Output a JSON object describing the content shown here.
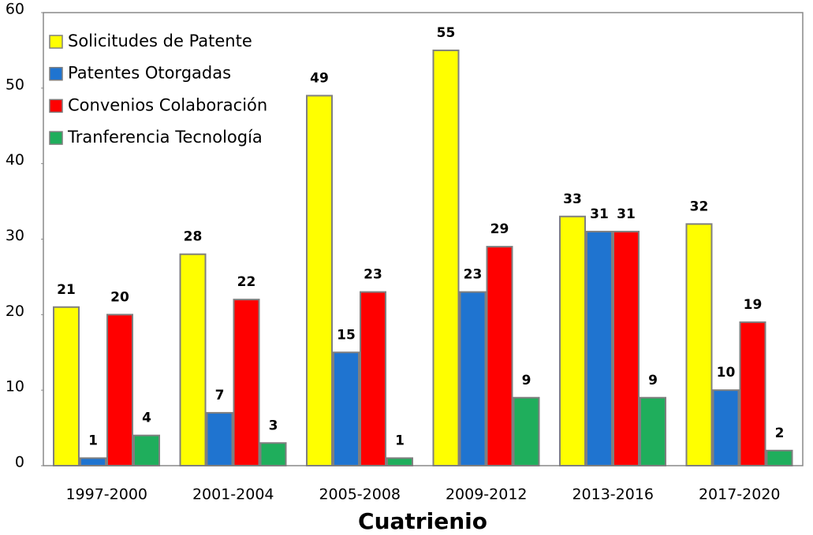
{
  "chart_data": {
    "type": "bar",
    "x_label": "Cuatrienio",
    "categories": [
      "1997-2000",
      "2001-2004",
      "2005-2008",
      "2009-2012",
      "2013-2016",
      "2017-2020"
    ],
    "series": [
      {
        "name": "Solicitudes de Patente",
        "color": "#ffff00",
        "values": [
          21,
          28,
          49,
          55,
          33,
          32
        ]
      },
      {
        "name": "Patentes Otorgadas",
        "color": "#1f74d0",
        "values": [
          1,
          7,
          15,
          23,
          31,
          10
        ]
      },
      {
        "name": "Convenios Colaboración",
        "color": "#ff0000",
        "values": [
          20,
          22,
          23,
          29,
          31,
          19
        ]
      },
      {
        "name": "Tranferencia Tecnología",
        "color": "#1fae5c",
        "values": [
          4,
          3,
          1,
          9,
          9,
          2
        ]
      }
    ],
    "ylim": [
      0,
      60
    ],
    "yticks": [
      0,
      10,
      20,
      30,
      40,
      50,
      60
    ],
    "legend": "upper left",
    "grid": false
  }
}
